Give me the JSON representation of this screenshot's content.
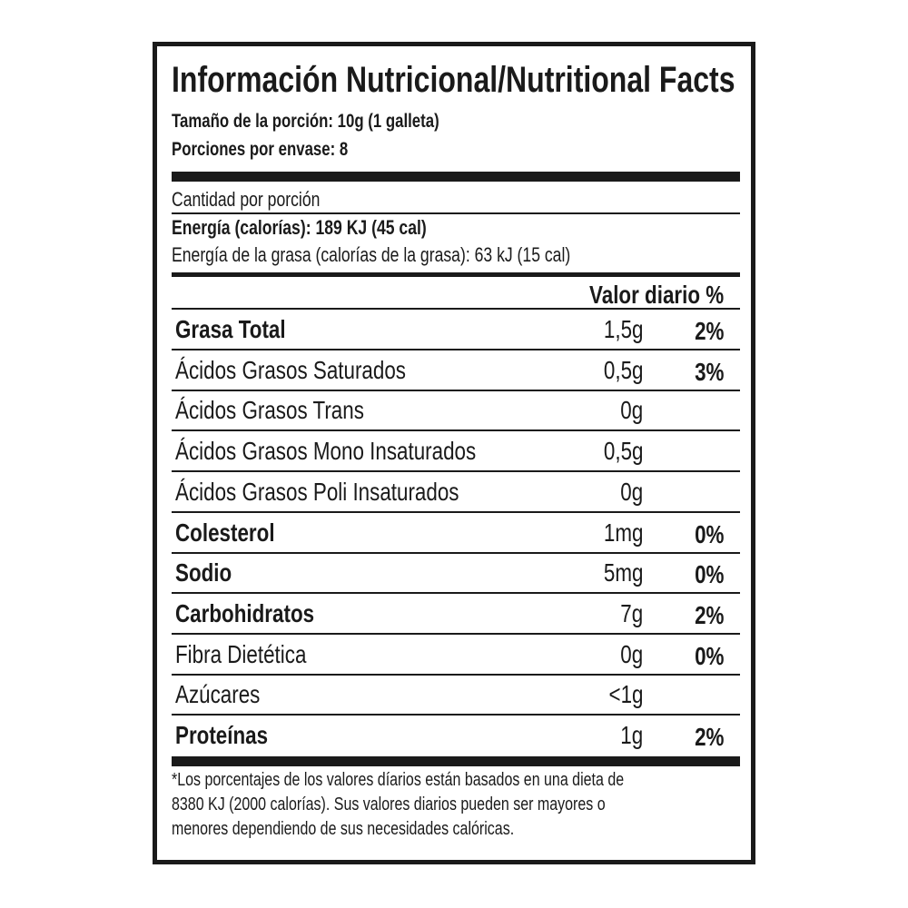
{
  "title": "Información Nutricional/Nutritional Facts",
  "serving_size": "Tamaño de la porción: 10g (1 galleta)",
  "servings_per_container": "Porciones por envase: 8",
  "amount_per_serving": "Cantidad por porción",
  "energy": "Energía (calorías): 189 KJ (45 cal)",
  "fat_energy": "Energía de la grasa  (calorías de la grasa): 63 kJ (15 cal)",
  "daily_value_header": "Valor diario %",
  "rows": [
    {
      "label": "Grasa Total",
      "value": "1,5g",
      "pct": "2%",
      "bold": true
    },
    {
      "label": "Ácidos Grasos Saturados",
      "value": "0,5g",
      "pct": "3%",
      "bold": false
    },
    {
      "label": "Ácidos Grasos Trans",
      "value": "0g",
      "pct": "",
      "bold": false
    },
    {
      "label": "Ácidos Grasos Mono Insaturados",
      "value": "0,5g",
      "pct": "",
      "bold": false
    },
    {
      "label": "Ácidos Grasos Poli Insaturados",
      "value": "0g",
      "pct": "",
      "bold": false
    },
    {
      "label": "Colesterol",
      "value": "1mg",
      "pct": "0%",
      "bold": true
    },
    {
      "label": "Sodio",
      "value": "5mg",
      "pct": "0%",
      "bold": true
    },
    {
      "label": "Carbohidratos",
      "value": "7g",
      "pct": "2%",
      "bold": true
    },
    {
      "label": "Fibra Dietética",
      "value": "0g",
      "pct": "0%",
      "bold": false
    },
    {
      "label": "Azúcares",
      "value": "<1g",
      "pct": "",
      "bold": false
    },
    {
      "label": "Proteínas",
      "value": "1g",
      "pct": "2%",
      "bold": true
    }
  ],
  "footnote": [
    "*Los porcentajes de los valores díarios están basados en una dieta de",
    "8380 KJ (2000 calorías). Sus valores diarios pueden ser mayores o",
    "menores dependiendo de sus necesidades calóricas."
  ]
}
